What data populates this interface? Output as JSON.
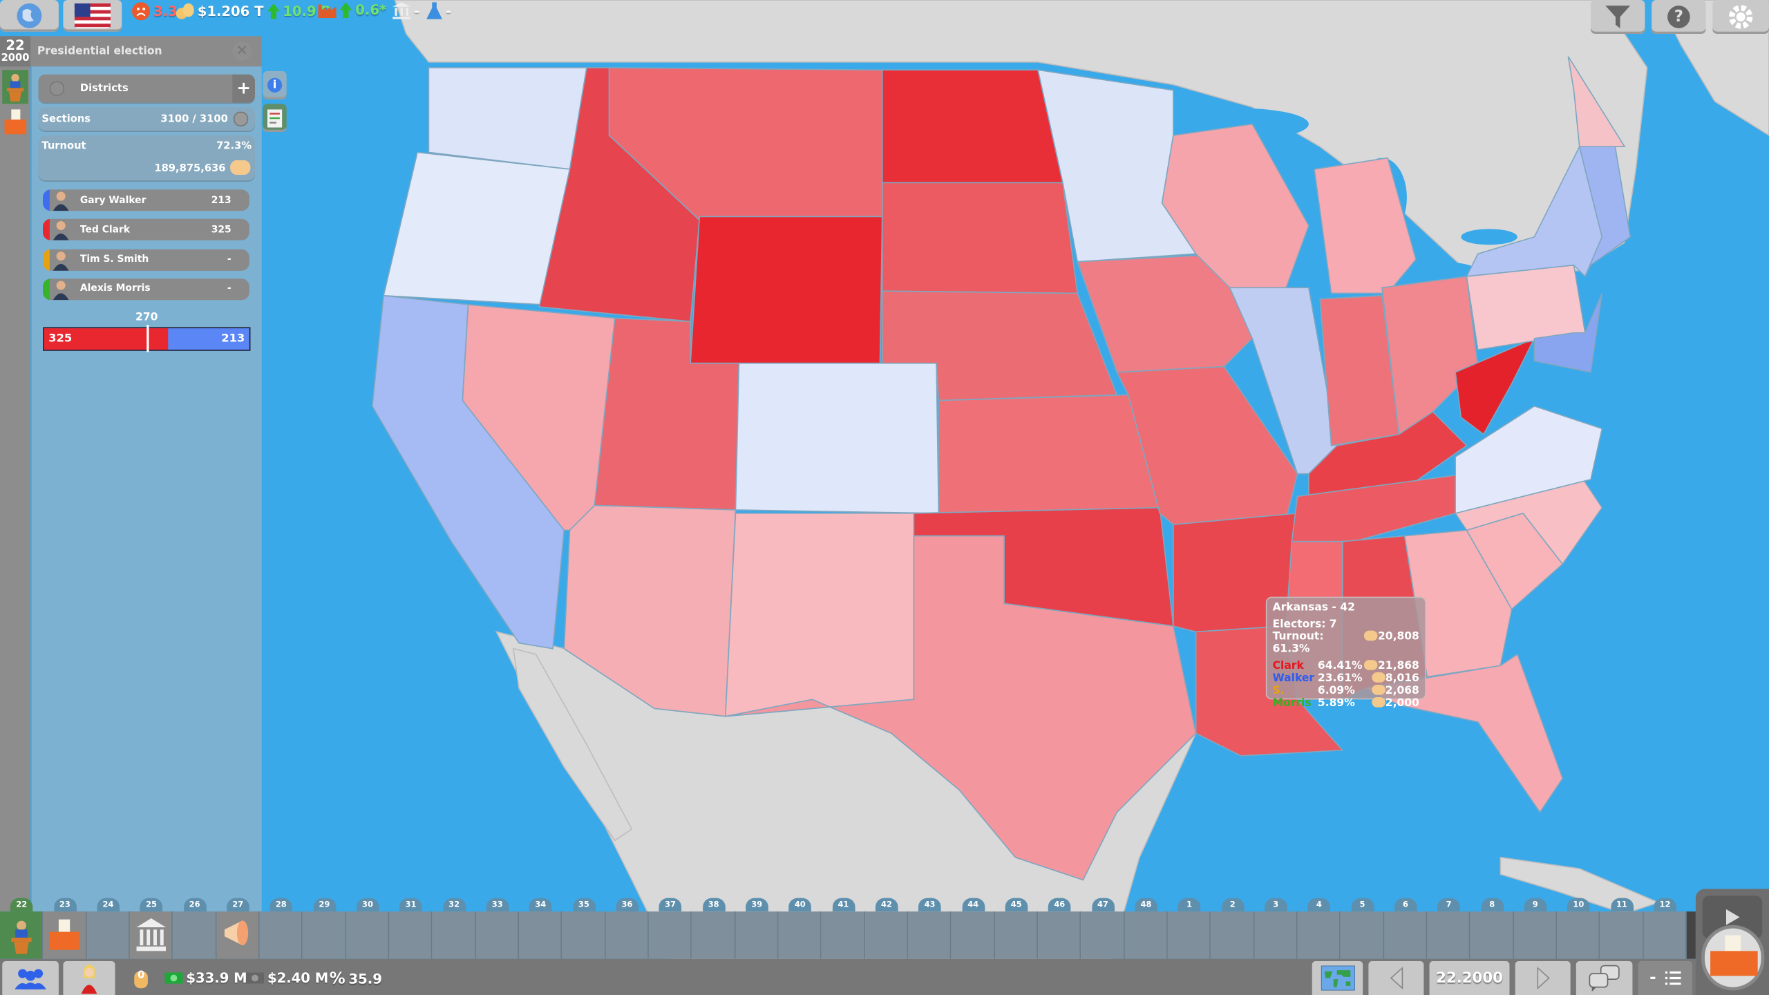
{
  "topbar": {
    "icons": [
      "globe-icon",
      "us-flag-icon",
      "unhappy-face-icon",
      "coins-icon",
      "arrow-up-icon",
      "factory-icon",
      "arrow-up-icon",
      "government-building-icon",
      "flask-icon"
    ],
    "unhappiness": "3.3",
    "treasury": "$1.206 T",
    "treasury_change": "10.9 B",
    "industry_change": "0.6*",
    "government_value": "-",
    "research_value": "-",
    "right_icons": [
      "filter-icon",
      "help-icon",
      "gear-icon"
    ],
    "help_label": "?"
  },
  "panel": {
    "day": "22",
    "year": "2000",
    "title": "Presidential election",
    "districts_label": "Districts",
    "districts_add": "+",
    "sections_label": "Sections",
    "sections_value": "3100 / 3100",
    "turnout_label": "Turnout",
    "turnout_pct": "72.3%",
    "turnout_count": "189,875,636",
    "candidates": [
      {
        "name": "Gary Walker",
        "votes": "213",
        "color": "#3f6df0"
      },
      {
        "name": "Ted Clark",
        "votes": "325",
        "color": "#e8272f"
      },
      {
        "name": "Tim S. Smith",
        "votes": "-",
        "color": "#e6a210"
      },
      {
        "name": "Alexis Morris",
        "votes": "-",
        "color": "#36b42a"
      }
    ],
    "threshold": "270",
    "bar": {
      "red_value": "325",
      "blue_value": "213",
      "red_color": "#e8272f",
      "blue_color": "#5b86f5"
    },
    "side_buttons": [
      "info-icon",
      "report-icon"
    ],
    "info_label": "i"
  },
  "tooltip": {
    "title": "Arkansas - 42",
    "electors": "Electors: 7",
    "turnout": "Turnout: 61.3%",
    "turnout_count": "20,808",
    "results": [
      {
        "name": "Clark",
        "pct": "64.41%",
        "count": "21,868",
        "color": "#e8151e"
      },
      {
        "name": "Walker",
        "pct": "23.61%",
        "count": "8,016",
        "color": "#2f5cf0"
      },
      {
        "name": "S.",
        "pct": "6.09%",
        "count": "2,068",
        "color": "#e6a210"
      },
      {
        "name": "Morris",
        "pct": "5.89%",
        "count": "2,000",
        "color": "#35b020"
      }
    ]
  },
  "map": {
    "colors": {
      "ocean": "#3aa9ea",
      "land": "#d9d9d9",
      "lake": "#3aa9ea"
    },
    "states": [
      {
        "name": "Washington",
        "fill": "#dbe4f8"
      },
      {
        "name": "Oregon",
        "fill": "#e3eafa"
      },
      {
        "name": "California",
        "fill": "#a6baf4"
      },
      {
        "name": "Nevada",
        "fill": "#f6a6ad"
      },
      {
        "name": "Idaho",
        "fill": "#e6454f"
      },
      {
        "name": "Montana",
        "fill": "#ee6870"
      },
      {
        "name": "Wyoming",
        "fill": "#e8262f"
      },
      {
        "name": "Utah",
        "fill": "#eb666e"
      },
      {
        "name": "Colorado",
        "fill": "#dfe7fa"
      },
      {
        "name": "Arizona",
        "fill": "#f5aeb4"
      },
      {
        "name": "New Mexico",
        "fill": "#f8babf"
      },
      {
        "name": "North Dakota",
        "fill": "#e82f38"
      },
      {
        "name": "South Dakota",
        "fill": "#ec5a62"
      },
      {
        "name": "Nebraska",
        "fill": "#ec6c73"
      },
      {
        "name": "Kansas",
        "fill": "#ef7077"
      },
      {
        "name": "Oklahoma",
        "fill": "#e8404a"
      },
      {
        "name": "Texas",
        "fill": "#f4969d"
      },
      {
        "name": "Minnesota",
        "fill": "#dce4f7"
      },
      {
        "name": "Iowa",
        "fill": "#ef7d85"
      },
      {
        "name": "Missouri",
        "fill": "#ee6d75"
      },
      {
        "name": "Arkansas",
        "fill": "#e8474f"
      },
      {
        "name": "Louisiana",
        "fill": "#ec5860"
      },
      {
        "name": "Wisconsin",
        "fill": "#f6a4ab"
      },
      {
        "name": "Illinois",
        "fill": "#c0cdf3"
      },
      {
        "name": "Michigan",
        "fill": "#f7aab2"
      },
      {
        "name": "Indiana",
        "fill": "#ee7279"
      },
      {
        "name": "Ohio",
        "fill": "#f1878f"
      },
      {
        "name": "Kentucky",
        "fill": "#e9414a"
      },
      {
        "name": "Tennessee",
        "fill": "#ec5b63"
      },
      {
        "name": "Mississippi",
        "fill": "#f36c74"
      },
      {
        "name": "Alabama",
        "fill": "#e84b54"
      },
      {
        "name": "Georgia",
        "fill": "#f7b1b7"
      },
      {
        "name": "Florida",
        "fill": "#f7a9b1"
      },
      {
        "name": "South Carolina",
        "fill": "#f9b4ba"
      },
      {
        "name": "North Carolina",
        "fill": "#f8c0c5"
      },
      {
        "name": "Virginia",
        "fill": "#e3e8fa"
      },
      {
        "name": "West Virginia",
        "fill": "#e4222c"
      },
      {
        "name": "Pennsylvania",
        "fill": "#f8c7cd"
      },
      {
        "name": "New York",
        "fill": "#b4c5f3"
      },
      {
        "name": "New England",
        "fill": "#9fb5f2"
      },
      {
        "name": "Maine",
        "fill": "#f5c2c8"
      },
      {
        "name": "Mid-Atlantic",
        "fill": "#89a5f0"
      }
    ]
  },
  "timeline": {
    "labels": [
      "22",
      "23",
      "24",
      "25",
      "26",
      "27",
      "28",
      "29",
      "30",
      "31",
      "32",
      "33",
      "34",
      "35",
      "36",
      "37",
      "38",
      "39",
      "40",
      "41",
      "42",
      "43",
      "44",
      "45",
      "46",
      "47",
      "48",
      "1",
      "2",
      "3",
      "4",
      "5",
      "6",
      "7",
      "8",
      "9",
      "10",
      "11",
      "12"
    ],
    "slot_icons": {
      "0": "podium-icon",
      "1": "ballot-box-icon",
      "3": "government-building-icon",
      "5": "megaphone-icon"
    }
  },
  "bottombar": {
    "icons": [
      "population-icon",
      "character-portrait-icon",
      "hand-icon",
      "cash-icon",
      "cash-gray-icon",
      "percent-icon"
    ],
    "hand_value": "0",
    "cash": "$33.9 M",
    "expense": "$2.40 M",
    "percent_sign": "%",
    "percent": "35.9",
    "date": "22.2000",
    "minus_label": "-",
    "right_icons": [
      "world-map-icon",
      "prev-arrow-icon",
      "next-arrow-icon",
      "chat-icon",
      "list-icon",
      "play-icon",
      "ballot-box-icon"
    ]
  }
}
